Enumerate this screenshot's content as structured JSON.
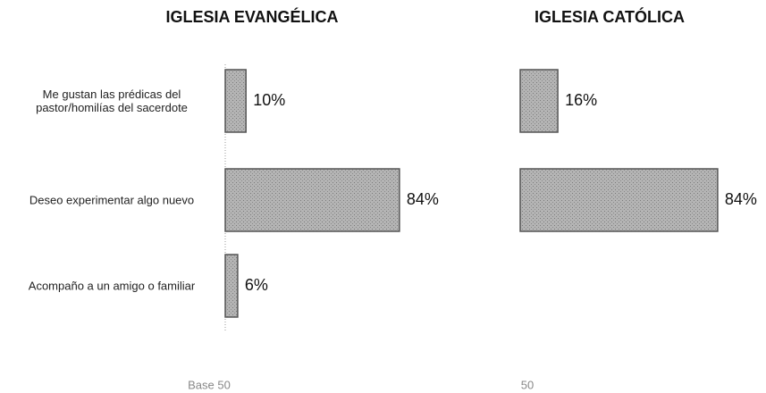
{
  "chart_data": [
    {
      "type": "bar",
      "title": "IGLESIA EVANGÉLICA",
      "categories": [
        "Me gustan las prédicas del pastor/homilías del sacerdote",
        "Deseo experimentar algo nuevo",
        "Acompaño a un amigo o familiar"
      ],
      "values": [
        10,
        84,
        6
      ],
      "value_labels": [
        "10%",
        "84%",
        "6%"
      ],
      "color": "#a8a8a8",
      "xlim": [
        0,
        100
      ],
      "footer": "Base 50"
    },
    {
      "type": "bar",
      "title": "IGLESIA CATÓLICA",
      "values": [
        16,
        84,
        null
      ],
      "value_labels": [
        "16%",
        "84%",
        null
      ],
      "color": "#a8a8a8",
      "xlim": [
        0,
        100
      ],
      "footer": "50"
    }
  ]
}
